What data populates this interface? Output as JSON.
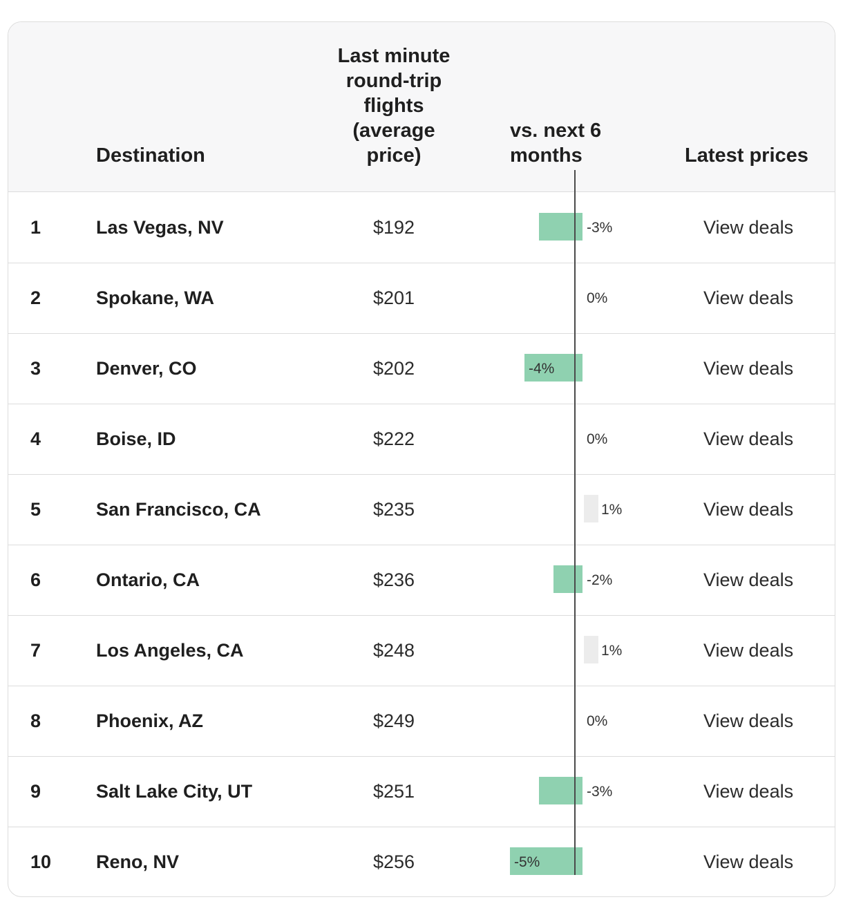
{
  "table": {
    "headers": {
      "destination": "Destination",
      "price": "Last minute round-trip flights (average price)",
      "vs": "vs. next 6 months",
      "latest": "Latest prices"
    },
    "rows": [
      {
        "rank": "1",
        "destination": "Las Vegas, NV",
        "price": "$192",
        "change_label": "-3%",
        "change": -3,
        "link": "View deals"
      },
      {
        "rank": "2",
        "destination": "Spokane, WA",
        "price": "$201",
        "change_label": "0%",
        "change": 0,
        "link": "View deals"
      },
      {
        "rank": "3",
        "destination": "Denver, CO",
        "price": "$202",
        "change_label": "-4%",
        "change": -4,
        "link": "View deals"
      },
      {
        "rank": "4",
        "destination": "Boise, ID",
        "price": "$222",
        "change_label": "0%",
        "change": 0,
        "link": "View deals"
      },
      {
        "rank": "5",
        "destination": "San Francisco, CA",
        "price": "$235",
        "change_label": "1%",
        "change": 1,
        "link": "View deals"
      },
      {
        "rank": "6",
        "destination": "Ontario, CA",
        "price": "$236",
        "change_label": "-2%",
        "change": -2,
        "link": "View deals"
      },
      {
        "rank": "7",
        "destination": "Los Angeles, CA",
        "price": "$248",
        "change_label": "1%",
        "change": 1,
        "link": "View deals"
      },
      {
        "rank": "8",
        "destination": "Phoenix, AZ",
        "price": "$249",
        "change_label": "0%",
        "change": 0,
        "link": "View deals"
      },
      {
        "rank": "9",
        "destination": "Salt Lake City, UT",
        "price": "$251",
        "change_label": "-3%",
        "change": -3,
        "link": "View deals"
      },
      {
        "rank": "10",
        "destination": "Reno, NV",
        "price": "$256",
        "change_label": "-5%",
        "change": -5,
        "link": "View deals"
      }
    ]
  },
  "colors": {
    "negative_bar": "#8fd1b0",
    "positive_bar": "#ececec",
    "header_bg": "#f7f7f8",
    "border": "#dcdcdc"
  }
}
